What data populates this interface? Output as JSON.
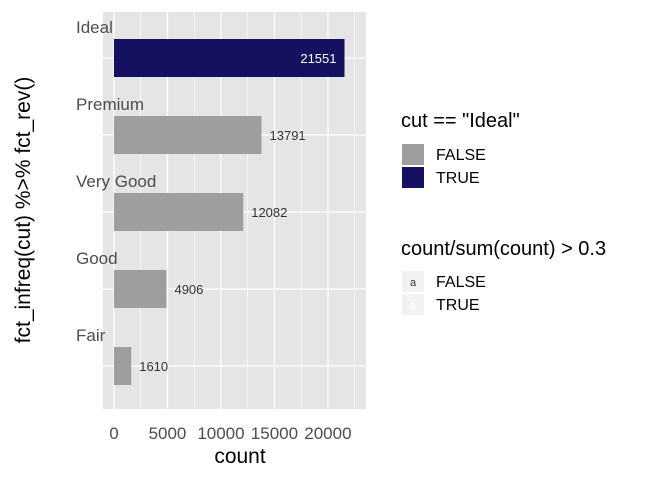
{
  "chart_data": {
    "type": "bar",
    "orientation": "horizontal",
    "categories": [
      "Ideal",
      "Premium",
      "Very Good",
      "Good",
      "Fair"
    ],
    "values": [
      21551,
      13791,
      12082,
      4906,
      1610
    ],
    "labels": [
      "21551",
      "13791",
      "12082",
      "4906",
      "1610"
    ],
    "highlight_ideal": [
      true,
      false,
      false,
      false,
      false
    ],
    "share_over_threshold": [
      true,
      false,
      false,
      false,
      false
    ],
    "xlabel": "count",
    "ylabel": "fct_infreq(cut) %>% fct_rev()",
    "xticks": [
      0,
      5000,
      10000,
      15000,
      20000
    ],
    "xtick_labels": [
      "0",
      "5000",
      "10000",
      "15000",
      "20000"
    ],
    "xlim": [
      0,
      23000
    ],
    "grid": true,
    "legend_position": "right",
    "legends": [
      {
        "title": "cut == \"Ideal\"",
        "kind": "fill",
        "entries": [
          {
            "label": "FALSE",
            "color": "#9e9e9e"
          },
          {
            "label": "TRUE",
            "color": "#15105f"
          }
        ]
      },
      {
        "title": "count/sum(count) > 0.3",
        "kind": "text-colour",
        "key_glyph": "a",
        "entries": [
          {
            "label": "FALSE",
            "color": "#333333"
          },
          {
            "label": "TRUE",
            "color": "#ffffff"
          }
        ]
      }
    ],
    "colors": {
      "panel": "#e5e5e5",
      "grid_major": "#ffffff",
      "bar_false": "#9e9e9e",
      "bar_true": "#15105f",
      "label_dark": "#333333",
      "label_light": "#ffffff"
    }
  }
}
